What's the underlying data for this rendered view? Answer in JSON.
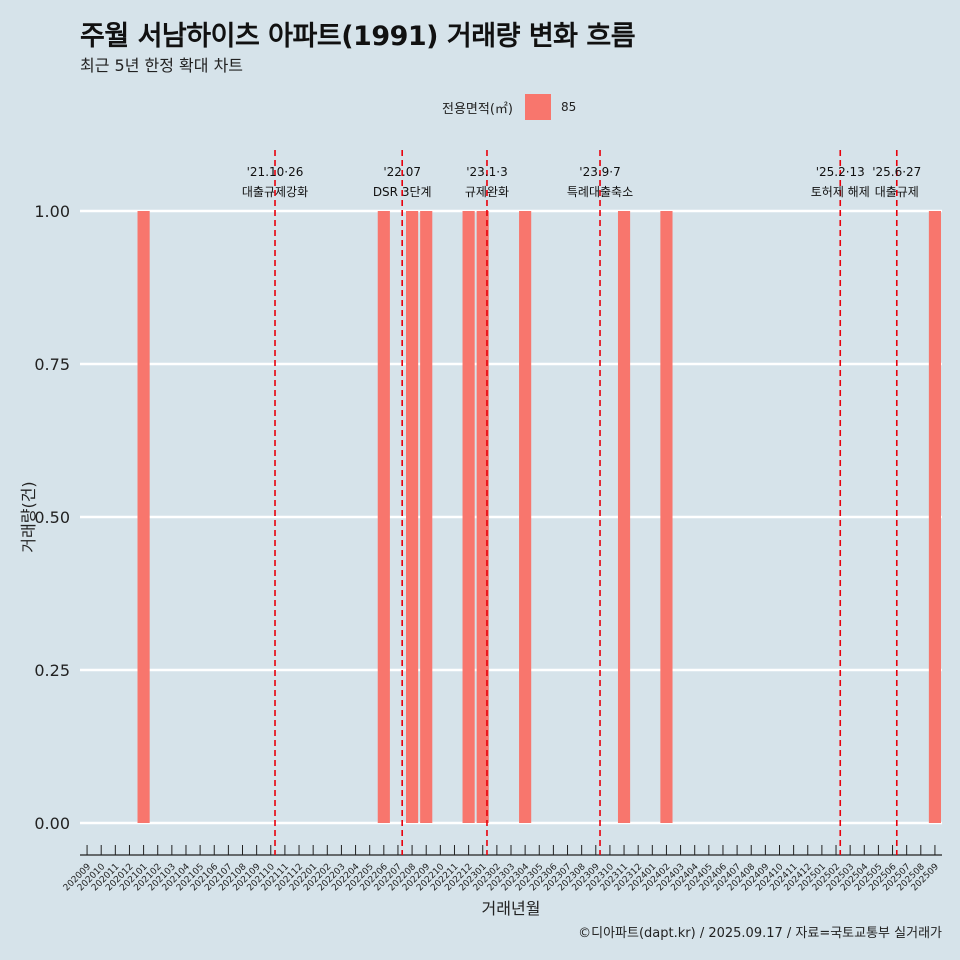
{
  "page": {
    "title": "주월 서남하이츠 아파트(1991) 거래량 변화 흐름",
    "subtitle": "최근 5년 한정 확대 차트",
    "caption": "©디아파트(dapt.kr) / 2025.09.17 / 자료=국토교통부 실거래가",
    "legend_title": "전용면적(㎡)",
    "legend_value": "85"
  },
  "colors": {
    "background": "#d6e3ea",
    "bar": "#f8766d",
    "grid": "#ffffff",
    "event_line": "#e8000b",
    "text": "#222222"
  },
  "chart_data": {
    "type": "bar",
    "xlabel": "거래년월",
    "ylabel": "거래량(건)",
    "ylim": [
      0,
      1
    ],
    "yticks": [
      "0.00",
      "0.25",
      "0.50",
      "0.75",
      "1.00"
    ],
    "grid": true,
    "legend_position": "top",
    "categories": [
      "202009",
      "202010",
      "202011",
      "202012",
      "202101",
      "202102",
      "202103",
      "202104",
      "202105",
      "202106",
      "202107",
      "202108",
      "202109",
      "202110",
      "202111",
      "202112",
      "202201",
      "202202",
      "202203",
      "202204",
      "202205",
      "202206",
      "202207",
      "202208",
      "202209",
      "202210",
      "202211",
      "202212",
      "202301",
      "202302",
      "202303",
      "202304",
      "202305",
      "202306",
      "202307",
      "202308",
      "202309",
      "202310",
      "202311",
      "202312",
      "202401",
      "202402",
      "202403",
      "202404",
      "202405",
      "202406",
      "202407",
      "202408",
      "202409",
      "202410",
      "202411",
      "202412",
      "202501",
      "202502",
      "202503",
      "202504",
      "202505",
      "202506",
      "202507",
      "202508",
      "202509"
    ],
    "series": [
      {
        "name": "85",
        "values": [
          0,
          0,
          0,
          0,
          1,
          0,
          0,
          0,
          0,
          0,
          0,
          0,
          0,
          0,
          0,
          0,
          0,
          0,
          0,
          0,
          0,
          1,
          0,
          1,
          1,
          0,
          0,
          1,
          1,
          0,
          0,
          1,
          0,
          0,
          0,
          0,
          0,
          0,
          1,
          0,
          0,
          1,
          0,
          0,
          0,
          0,
          0,
          0,
          0,
          0,
          0,
          0,
          0,
          0,
          0,
          0,
          0,
          0,
          0,
          0,
          1
        ]
      }
    ],
    "events": [
      {
        "date": "'21.10·26",
        "label": "대출규제강화",
        "x_index": 13.3
      },
      {
        "date": "'22.07",
        "label": "DSR 3단계",
        "x_index": 22.3
      },
      {
        "date": "'23.1·3",
        "label": "규제완화",
        "x_index": 28.3
      },
      {
        "date": "'23.9·7",
        "label": "특례대출축소",
        "x_index": 36.3
      },
      {
        "date": "'25.2·13",
        "label": "토허제 해제",
        "x_index": 53.3
      },
      {
        "date": "'25.6·27",
        "label": "대출규제",
        "x_index": 57.3
      }
    ]
  }
}
